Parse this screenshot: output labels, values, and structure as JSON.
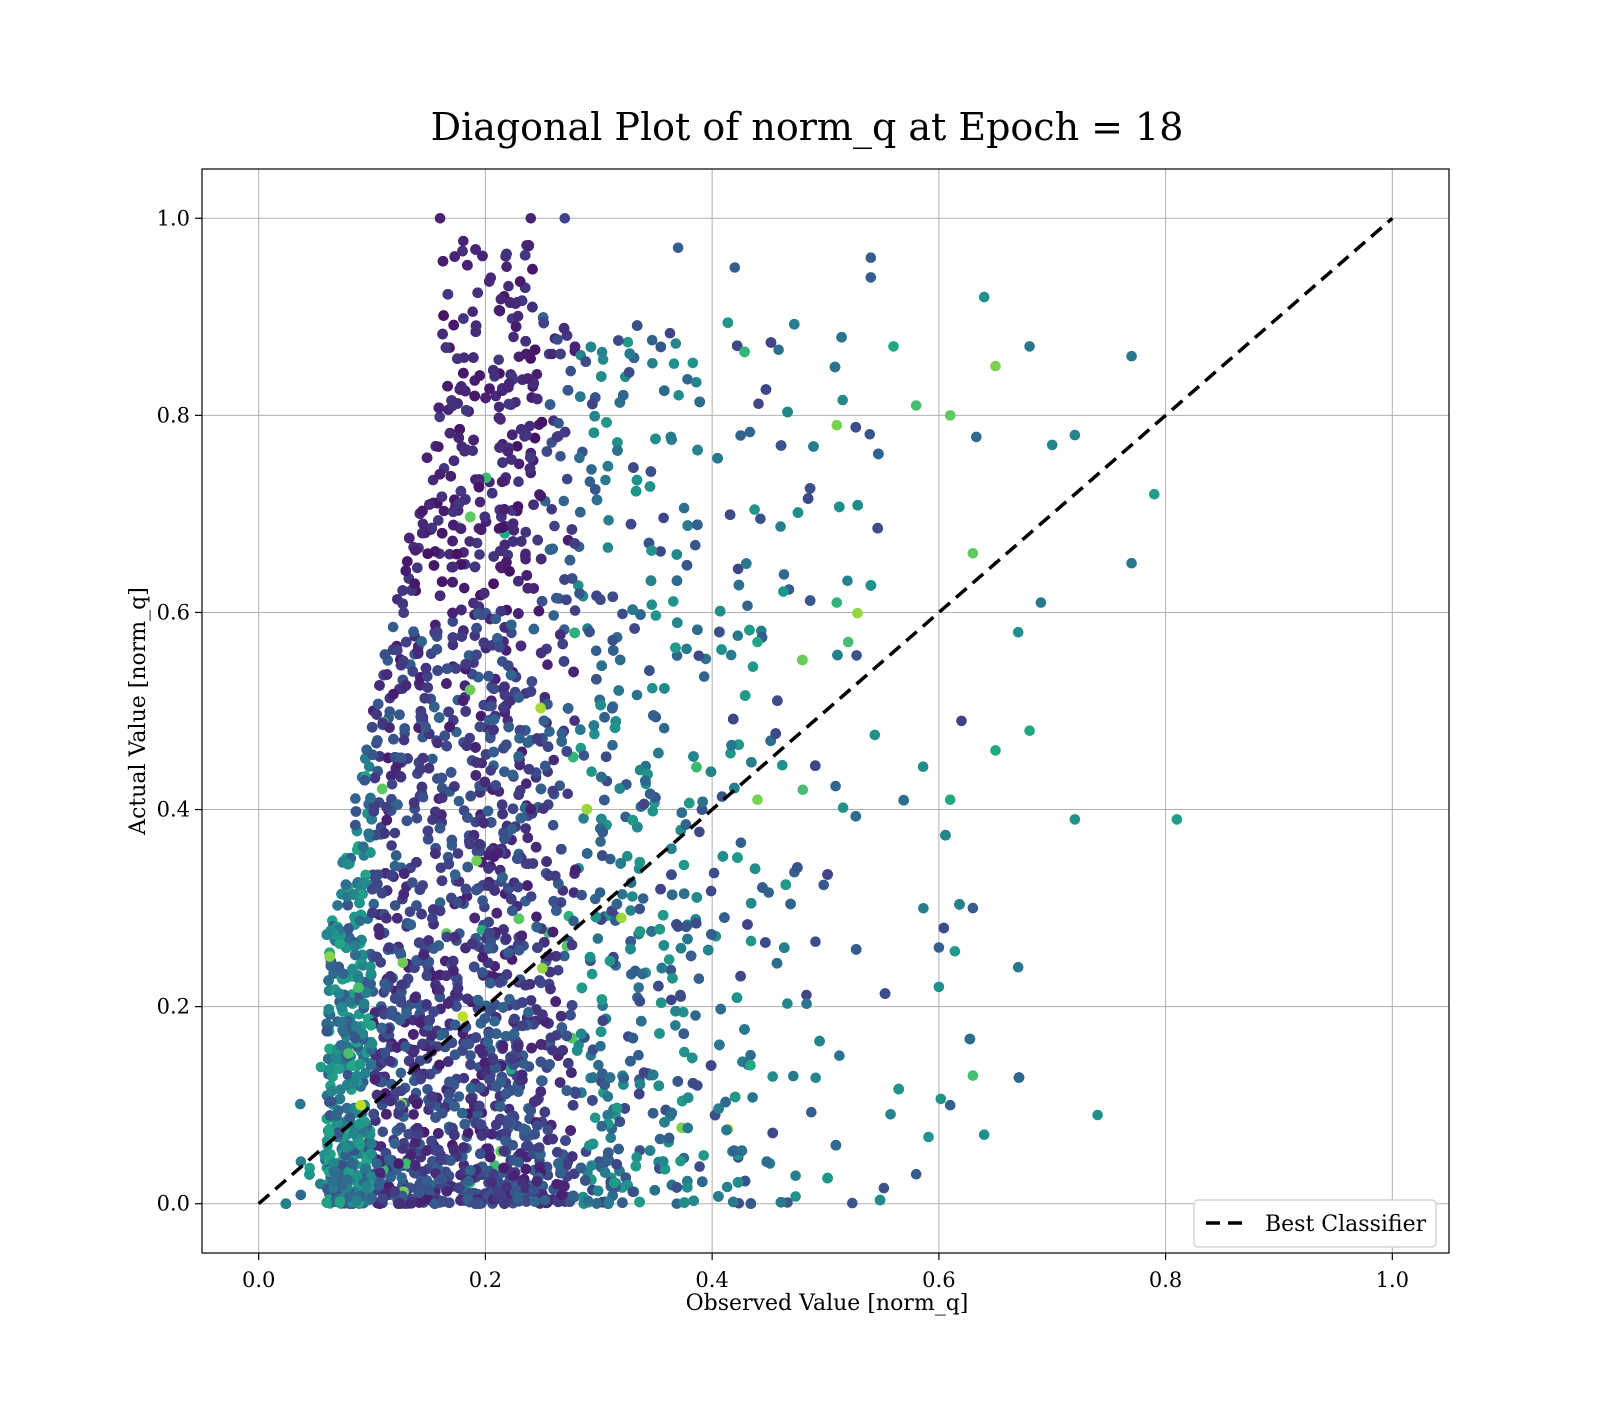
{
  "chart_data": {
    "type": "scatter",
    "title": "Diagonal Plot of norm_q at Epoch = 18",
    "xlabel": "Observed Value [norm_q]",
    "ylabel": "Actual Value [norm_q]",
    "xlim": [
      -0.05,
      1.05
    ],
    "ylim": [
      -0.05,
      1.05
    ],
    "xticks": [
      "0.0",
      "0.2",
      "0.4",
      "0.6",
      "0.8",
      "1.0"
    ],
    "yticks": [
      "0.0",
      "0.2",
      "0.4",
      "0.6",
      "0.8",
      "1.0"
    ],
    "grid": true,
    "colormap": "viridis",
    "legend": {
      "position": "lower-right",
      "entries": [
        "Best Classifier"
      ]
    },
    "reference_line": {
      "name": "Best Classifier",
      "x": [
        0.0,
        1.0
      ],
      "y": [
        0.0,
        1.0
      ],
      "style": "dashed",
      "color": "#000000"
    },
    "density_profile": [
      {
        "x_range": [
          0.02,
          0.06
        ],
        "y_max": 0.25,
        "color_level": 0.35
      },
      {
        "x_range": [
          0.06,
          0.12
        ],
        "y_max": 0.6,
        "color_level": 0.3
      },
      {
        "x_range": [
          0.12,
          0.16
        ],
        "y_max": 0.85,
        "color_level": 0.15
      },
      {
        "x_range": [
          0.16,
          0.24
        ],
        "y_max": 1.0,
        "color_level": 0.12
      },
      {
        "x_range": [
          0.24,
          0.3
        ],
        "y_max": 0.9,
        "color_level": 0.25
      },
      {
        "x_range": [
          0.3,
          0.36
        ],
        "y_max": 0.85,
        "color_level": 0.3
      },
      {
        "x_range": [
          0.36,
          0.5
        ],
        "y_max": 0.9,
        "color_level": 0.4
      },
      {
        "x_range": [
          0.5,
          0.8
        ],
        "y_max": 0.95,
        "color_level": 0.45
      }
    ],
    "points": [
      [
        0.16,
        1.0,
        0.1
      ],
      [
        0.24,
        1.0,
        0.1
      ],
      [
        0.27,
        1.0,
        0.2
      ],
      [
        0.77,
        0.86,
        0.4
      ],
      [
        0.79,
        0.72,
        0.55
      ],
      [
        0.77,
        0.65,
        0.4
      ],
      [
        0.81,
        0.39,
        0.55
      ],
      [
        0.72,
        0.39,
        0.5
      ],
      [
        0.74,
        0.09,
        0.5
      ],
      [
        0.64,
        0.92,
        0.5
      ],
      [
        0.65,
        0.85,
        0.8
      ],
      [
        0.68,
        0.87,
        0.4
      ],
      [
        0.61,
        0.8,
        0.75
      ],
      [
        0.58,
        0.81,
        0.7
      ],
      [
        0.56,
        0.87,
        0.6
      ],
      [
        0.63,
        0.66,
        0.75
      ],
      [
        0.69,
        0.61,
        0.4
      ],
      [
        0.67,
        0.58,
        0.5
      ],
      [
        0.68,
        0.48,
        0.6
      ],
      [
        0.65,
        0.46,
        0.6
      ],
      [
        0.62,
        0.49,
        0.2
      ],
      [
        0.61,
        0.41,
        0.6
      ],
      [
        0.63,
        0.3,
        0.3
      ],
      [
        0.6,
        0.26,
        0.3
      ],
      [
        0.6,
        0.22,
        0.5
      ],
      [
        0.67,
        0.24,
        0.4
      ],
      [
        0.63,
        0.13,
        0.7
      ],
      [
        0.64,
        0.07,
        0.5
      ],
      [
        0.61,
        0.1,
        0.3
      ],
      [
        0.58,
        0.03,
        0.3
      ],
      [
        0.32,
        0.29,
        0.85
      ],
      [
        0.18,
        0.19,
        0.9
      ],
      [
        0.09,
        0.1,
        0.9
      ],
      [
        0.44,
        0.41,
        0.8
      ],
      [
        0.48,
        0.42,
        0.7
      ],
      [
        0.51,
        0.79,
        0.8
      ],
      [
        0.52,
        0.57,
        0.7
      ],
      [
        0.51,
        0.61,
        0.65
      ],
      [
        0.44,
        0.57,
        0.6
      ],
      [
        0.7,
        0.77,
        0.45
      ],
      [
        0.72,
        0.78,
        0.45
      ],
      [
        0.54,
        0.96,
        0.3
      ],
      [
        0.54,
        0.94,
        0.3
      ],
      [
        0.42,
        0.95,
        0.3
      ],
      [
        0.37,
        0.97,
        0.3
      ]
    ]
  }
}
